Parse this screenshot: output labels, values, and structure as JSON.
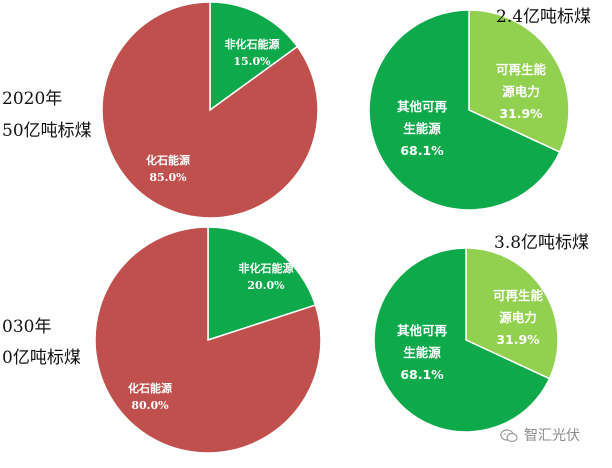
{
  "chart_data": [
    {
      "type": "pie",
      "year_label": "2020年",
      "total_label": "50亿吨标煤",
      "slices": [
        {
          "label": "非化石能源",
          "value": 15.0,
          "display": "15.0%",
          "color": "#0da94a"
        },
        {
          "label": "化石能源",
          "value": 85.0,
          "display": "85.0%",
          "color": "#c0504d"
        }
      ]
    },
    {
      "type": "pie",
      "total_label": "2.4亿吨标煤",
      "slices": [
        {
          "label": "可再生能源电力",
          "label_lines": [
            "可再生能",
            "源电力"
          ],
          "value": 31.9,
          "display": "31.9%",
          "color": "#92d050"
        },
        {
          "label": "其他可再生能源",
          "label_lines": [
            "其他可再",
            "生能源"
          ],
          "value": 68.1,
          "display": "68.1%",
          "color": "#0da94a"
        }
      ]
    },
    {
      "type": "pie",
      "year_label": "030年",
      "total_label": "0亿吨标煤",
      "slices": [
        {
          "label": "非化石能源",
          "value": 20.0,
          "display": "20.0%",
          "color": "#0da94a"
        },
        {
          "label": "化石能源",
          "value": 80.0,
          "display": "80.0%",
          "color": "#c0504d"
        }
      ]
    },
    {
      "type": "pie",
      "total_label": "3.8亿吨标煤",
      "slices": [
        {
          "label": "可再生能源电力",
          "label_lines": [
            "可再生能",
            "源电力"
          ],
          "value": 31.9,
          "display": "31.9%",
          "color": "#92d050"
        },
        {
          "label": "其他可再生能源",
          "label_lines": [
            "其他可再",
            "生能源"
          ],
          "value": 68.1,
          "display": "68.1%",
          "color": "#0da94a"
        }
      ]
    }
  ],
  "watermark": {
    "text": "智汇光伏",
    "icon": "wechat-icon"
  }
}
